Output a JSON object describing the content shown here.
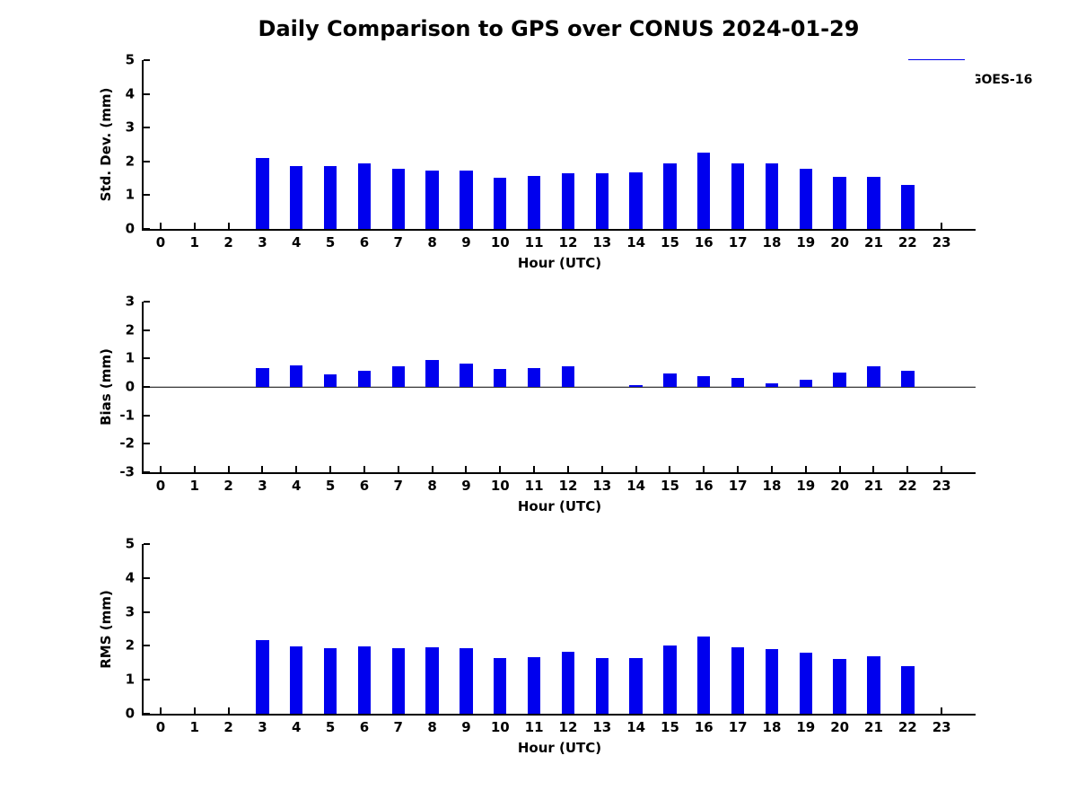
{
  "title": "Daily Comparison to GPS over CONUS 2024-01-29",
  "legend": {
    "label": "GOES-16",
    "color": "#0000ee",
    "position": "upper-right"
  },
  "chart_data": [
    {
      "type": "bar",
      "ylabel": "Std. Dev. (mm)",
      "xlabel": "Hour (UTC)",
      "ylim": [
        0,
        5
      ],
      "yticks": [
        0,
        1,
        2,
        3,
        4,
        5
      ],
      "xlim": [
        -0.5,
        24
      ],
      "xticks": [
        0,
        1,
        2,
        3,
        4,
        5,
        6,
        7,
        8,
        9,
        10,
        11,
        12,
        13,
        14,
        15,
        16,
        17,
        18,
        19,
        20,
        21,
        22,
        23
      ],
      "grid": false,
      "zero_line": false,
      "bar_width": 0.38,
      "categories": [
        0,
        1,
        2,
        3,
        4,
        5,
        6,
        7,
        8,
        9,
        10,
        11,
        12,
        13,
        14,
        15,
        16,
        17,
        18,
        19,
        20,
        21,
        22,
        23
      ],
      "series": [
        {
          "name": "GOES-16",
          "color": "#0000ee",
          "values": [
            null,
            null,
            null,
            2.09,
            1.85,
            1.86,
            1.95,
            1.77,
            1.72,
            1.74,
            1.51,
            1.56,
            1.64,
            1.64,
            1.67,
            1.95,
            2.27,
            1.95,
            1.93,
            1.78,
            1.55,
            1.53,
            1.3,
            null
          ]
        }
      ]
    },
    {
      "type": "bar",
      "ylabel": "Bias (mm)",
      "xlabel": "Hour (UTC)",
      "ylim": [
        -3,
        3
      ],
      "yticks": [
        -3,
        -2,
        -1,
        0,
        1,
        2,
        3
      ],
      "xlim": [
        -0.5,
        24
      ],
      "xticks": [
        0,
        1,
        2,
        3,
        4,
        5,
        6,
        7,
        8,
        9,
        10,
        11,
        12,
        13,
        14,
        15,
        16,
        17,
        18,
        19,
        20,
        21,
        22,
        23
      ],
      "grid": false,
      "zero_line": true,
      "bar_width": 0.38,
      "categories": [
        0,
        1,
        2,
        3,
        4,
        5,
        6,
        7,
        8,
        9,
        10,
        11,
        12,
        13,
        14,
        15,
        16,
        17,
        18,
        19,
        20,
        21,
        22,
        23
      ],
      "series": [
        {
          "name": "GOES-16",
          "color": "#0000ee",
          "values": [
            null,
            null,
            null,
            0.66,
            0.76,
            0.43,
            0.58,
            0.73,
            0.95,
            0.83,
            0.63,
            0.66,
            0.72,
            0.0,
            0.05,
            0.46,
            0.39,
            0.33,
            0.12,
            0.26,
            0.49,
            0.74,
            0.58,
            null
          ]
        }
      ]
    },
    {
      "type": "bar",
      "ylabel": "RMS (mm)",
      "xlabel": "Hour (UTC)",
      "ylim": [
        0,
        5
      ],
      "yticks": [
        0,
        1,
        2,
        3,
        4,
        5
      ],
      "xlim": [
        -0.5,
        24
      ],
      "xticks": [
        0,
        1,
        2,
        3,
        4,
        5,
        6,
        7,
        8,
        9,
        10,
        11,
        12,
        13,
        14,
        15,
        16,
        17,
        18,
        19,
        20,
        21,
        22,
        23
      ],
      "grid": false,
      "zero_line": false,
      "bar_width": 0.38,
      "categories": [
        0,
        1,
        2,
        3,
        4,
        5,
        6,
        7,
        8,
        9,
        10,
        11,
        12,
        13,
        14,
        15,
        16,
        17,
        18,
        19,
        20,
        21,
        22,
        23
      ],
      "series": [
        {
          "name": "GOES-16",
          "color": "#0000ee",
          "values": [
            null,
            null,
            null,
            2.18,
            1.99,
            1.92,
            1.99,
            1.92,
            1.96,
            1.92,
            1.63,
            1.68,
            1.82,
            1.65,
            1.65,
            2.01,
            2.27,
            1.96,
            1.9,
            1.79,
            1.62,
            1.7,
            1.41,
            null
          ]
        }
      ]
    }
  ]
}
